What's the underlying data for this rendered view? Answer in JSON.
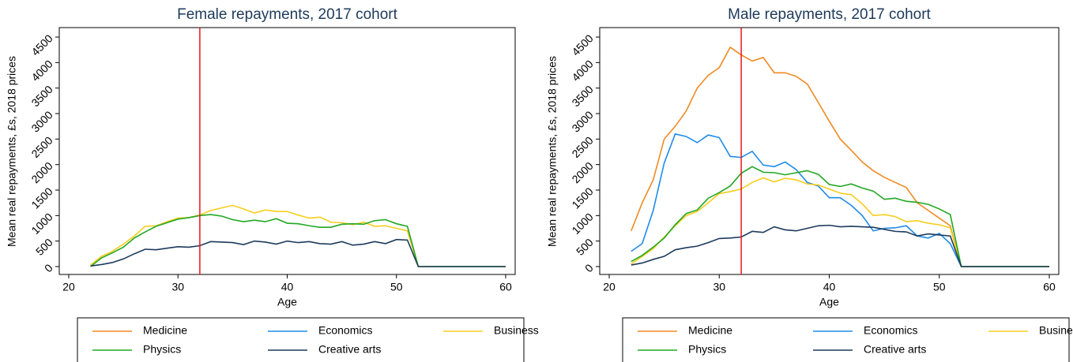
{
  "chart_data": [
    {
      "type": "line",
      "title": "Female repayments, 2017 cohort",
      "xlabel": "Age",
      "ylabel": "Mean real repayments, £s, 2018 prices",
      "x": [
        22,
        23,
        24,
        25,
        26,
        27,
        28,
        29,
        30,
        31,
        32,
        33,
        34,
        35,
        36,
        37,
        38,
        39,
        40,
        41,
        42,
        43,
        44,
        45,
        46,
        47,
        48,
        49,
        50,
        51,
        52,
        53,
        54,
        55,
        56,
        57,
        58,
        59,
        60
      ],
      "xlim": [
        20,
        60
      ],
      "xticks": [
        20,
        30,
        40,
        50,
        60
      ],
      "ylim": [
        0,
        4500
      ],
      "yticks": [
        0,
        500,
        1000,
        1500,
        2000,
        2500,
        3000,
        3500,
        4000,
        4500
      ],
      "vline": 32,
      "vline_color": "#e8141c",
      "series": [
        {
          "name": "Medicine",
          "color": "#f08a24",
          "values": [
            null,
            null,
            null,
            null,
            null,
            null,
            null,
            null,
            null,
            null,
            null,
            null,
            null,
            null,
            null,
            null,
            null,
            null,
            null,
            null,
            null,
            null,
            null,
            null,
            null,
            null,
            null,
            null,
            null,
            null,
            null,
            null,
            null,
            null,
            null,
            null,
            null,
            null,
            null
          ]
        },
        {
          "name": "Economics",
          "color": "#1f8be8",
          "values": [
            null,
            null,
            null,
            null,
            null,
            null,
            null,
            null,
            null,
            null,
            null,
            null,
            null,
            null,
            null,
            null,
            null,
            null,
            null,
            null,
            null,
            null,
            null,
            null,
            null,
            null,
            null,
            null,
            null,
            null,
            null,
            null,
            null,
            null,
            null,
            null,
            null,
            null,
            null
          ]
        },
        {
          "name": "Business",
          "color": "#f7cd1e",
          "values": [
            30,
            200,
            300,
            440,
            600,
            790,
            800,
            880,
            950,
            960,
            1010,
            1100,
            1150,
            1200,
            1130,
            1050,
            1110,
            1080,
            1080,
            1010,
            950,
            970,
            870,
            860,
            820,
            870,
            790,
            800,
            750,
            700,
            0,
            0,
            0,
            0,
            0,
            0,
            0,
            0,
            0
          ]
        },
        {
          "name": "Physics",
          "color": "#22a722",
          "values": [
            0,
            170,
            270,
            380,
            560,
            680,
            790,
            860,
            930,
            960,
            1000,
            1020,
            990,
            920,
            880,
            910,
            880,
            940,
            850,
            840,
            800,
            770,
            770,
            830,
            840,
            830,
            900,
            920,
            840,
            790,
            0,
            0,
            0,
            0,
            0,
            0,
            0,
            0,
            0
          ]
        },
        {
          "name": "Creative arts",
          "color": "#1d3a5c",
          "values": [
            10,
            40,
            80,
            150,
            250,
            340,
            330,
            360,
            390,
            380,
            410,
            490,
            480,
            470,
            430,
            500,
            480,
            440,
            500,
            470,
            490,
            450,
            440,
            490,
            420,
            440,
            490,
            450,
            530,
            520,
            0,
            0,
            0,
            0,
            0,
            0,
            0,
            0,
            0
          ]
        }
      ]
    },
    {
      "type": "line",
      "title": "Male repayments, 2017 cohort",
      "xlabel": "Age",
      "ylabel": "Mean real repayments, £s, 2018 prices",
      "x": [
        22,
        23,
        24,
        25,
        26,
        27,
        28,
        29,
        30,
        31,
        32,
        33,
        34,
        35,
        36,
        37,
        38,
        39,
        40,
        41,
        42,
        43,
        44,
        45,
        46,
        47,
        48,
        49,
        50,
        51,
        52,
        53,
        54,
        55,
        56,
        57,
        58,
        59,
        60
      ],
      "xlim": [
        20,
        60
      ],
      "xticks": [
        20,
        30,
        40,
        50,
        60
      ],
      "ylim": [
        0,
        4500
      ],
      "yticks": [
        0,
        500,
        1000,
        1500,
        2000,
        2500,
        3000,
        3500,
        4000,
        4500
      ],
      "vline": 32,
      "vline_color": "#e8141c",
      "series": [
        {
          "name": "Medicine",
          "color": "#f08a24",
          "values": [
            700,
            1250,
            1700,
            2500,
            2750,
            3050,
            3500,
            3750,
            3900,
            4300,
            4150,
            4030,
            4100,
            3800,
            3800,
            3730,
            3580,
            3220,
            2850,
            2500,
            2280,
            2050,
            1880,
            1750,
            1650,
            1550,
            1250,
            1100,
            950,
            800,
            0,
            0,
            0,
            0,
            0,
            0,
            0,
            0,
            0
          ]
        },
        {
          "name": "Economics",
          "color": "#1f8be8",
          "values": [
            300,
            450,
            1100,
            2030,
            2600,
            2550,
            2430,
            2580,
            2530,
            2160,
            2140,
            2260,
            1990,
            1960,
            2050,
            1900,
            1650,
            1580,
            1350,
            1350,
            1200,
            1000,
            700,
            750,
            760,
            800,
            600,
            560,
            650,
            450,
            0,
            0,
            0,
            0,
            0,
            0,
            0,
            0,
            0
          ]
        },
        {
          "name": "Business",
          "color": "#f7cd1e",
          "values": [
            50,
            200,
            350,
            580,
            800,
            1000,
            1080,
            1250,
            1430,
            1470,
            1520,
            1650,
            1740,
            1660,
            1730,
            1700,
            1620,
            1600,
            1520,
            1440,
            1410,
            1230,
            1000,
            1020,
            980,
            880,
            900,
            850,
            820,
            760,
            0,
            0,
            0,
            0,
            0,
            0,
            0,
            0,
            0
          ]
        },
        {
          "name": "Physics",
          "color": "#22a722",
          "values": [
            100,
            220,
            380,
            560,
            820,
            1040,
            1110,
            1340,
            1450,
            1580,
            1830,
            1960,
            1850,
            1840,
            1800,
            1840,
            1880,
            1810,
            1610,
            1570,
            1620,
            1540,
            1480,
            1320,
            1340,
            1280,
            1260,
            1220,
            1130,
            1020,
            0,
            0,
            0,
            0,
            0,
            0,
            0,
            0,
            0
          ]
        },
        {
          "name": "Creative arts",
          "color": "#1d3a5c",
          "values": [
            30,
            70,
            140,
            200,
            330,
            370,
            400,
            470,
            550,
            560,
            580,
            690,
            670,
            780,
            720,
            700,
            750,
            800,
            810,
            780,
            790,
            780,
            770,
            730,
            690,
            680,
            600,
            640,
            620,
            600,
            0,
            0,
            0,
            0,
            0,
            0,
            0,
            0,
            0
          ]
        }
      ]
    }
  ]
}
